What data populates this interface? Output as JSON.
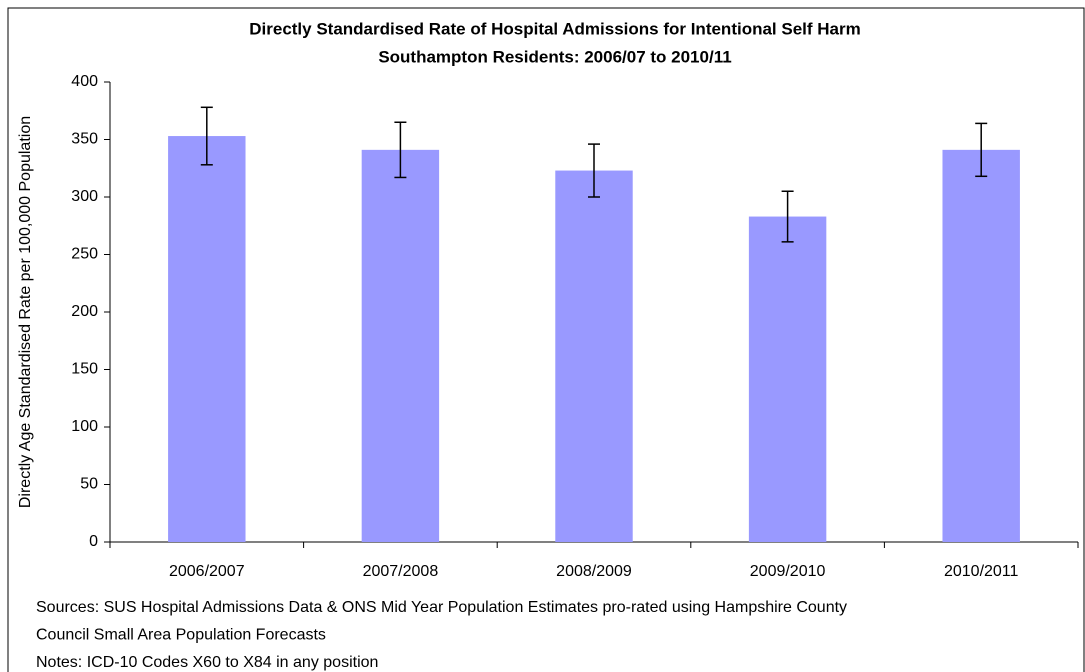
{
  "chart_data": {
    "type": "bar",
    "title": "Directly Standardised Rate of Hospital Admissions for Intentional Self Harm",
    "subtitle": "Southampton Residents: 2006/07 to 2010/11",
    "y_label": "Directly Age Standardised Rate per 100,000 Population",
    "categories": [
      "2006/2007",
      "2007/2008",
      "2008/2009",
      "2009/2010",
      "2010/2011"
    ],
    "values": [
      353,
      341,
      323,
      283,
      341
    ],
    "errors": [
      25,
      24,
      23,
      22,
      23
    ],
    "color": "#9999ff",
    "error_color": "#000000",
    "ylim": [
      0,
      400
    ],
    "yticks": [
      0,
      50,
      100,
      150,
      200,
      250,
      300,
      350,
      400
    ],
    "grid": false,
    "footnotes": [
      "Sources: SUS Hospital Admissions Data & ONS Mid Year Population Estimates pro-rated using Hampshire County",
      "Council Small Area Population Forecasts",
      "Notes: ICD-10 Codes X60 to X84 in any position"
    ]
  }
}
